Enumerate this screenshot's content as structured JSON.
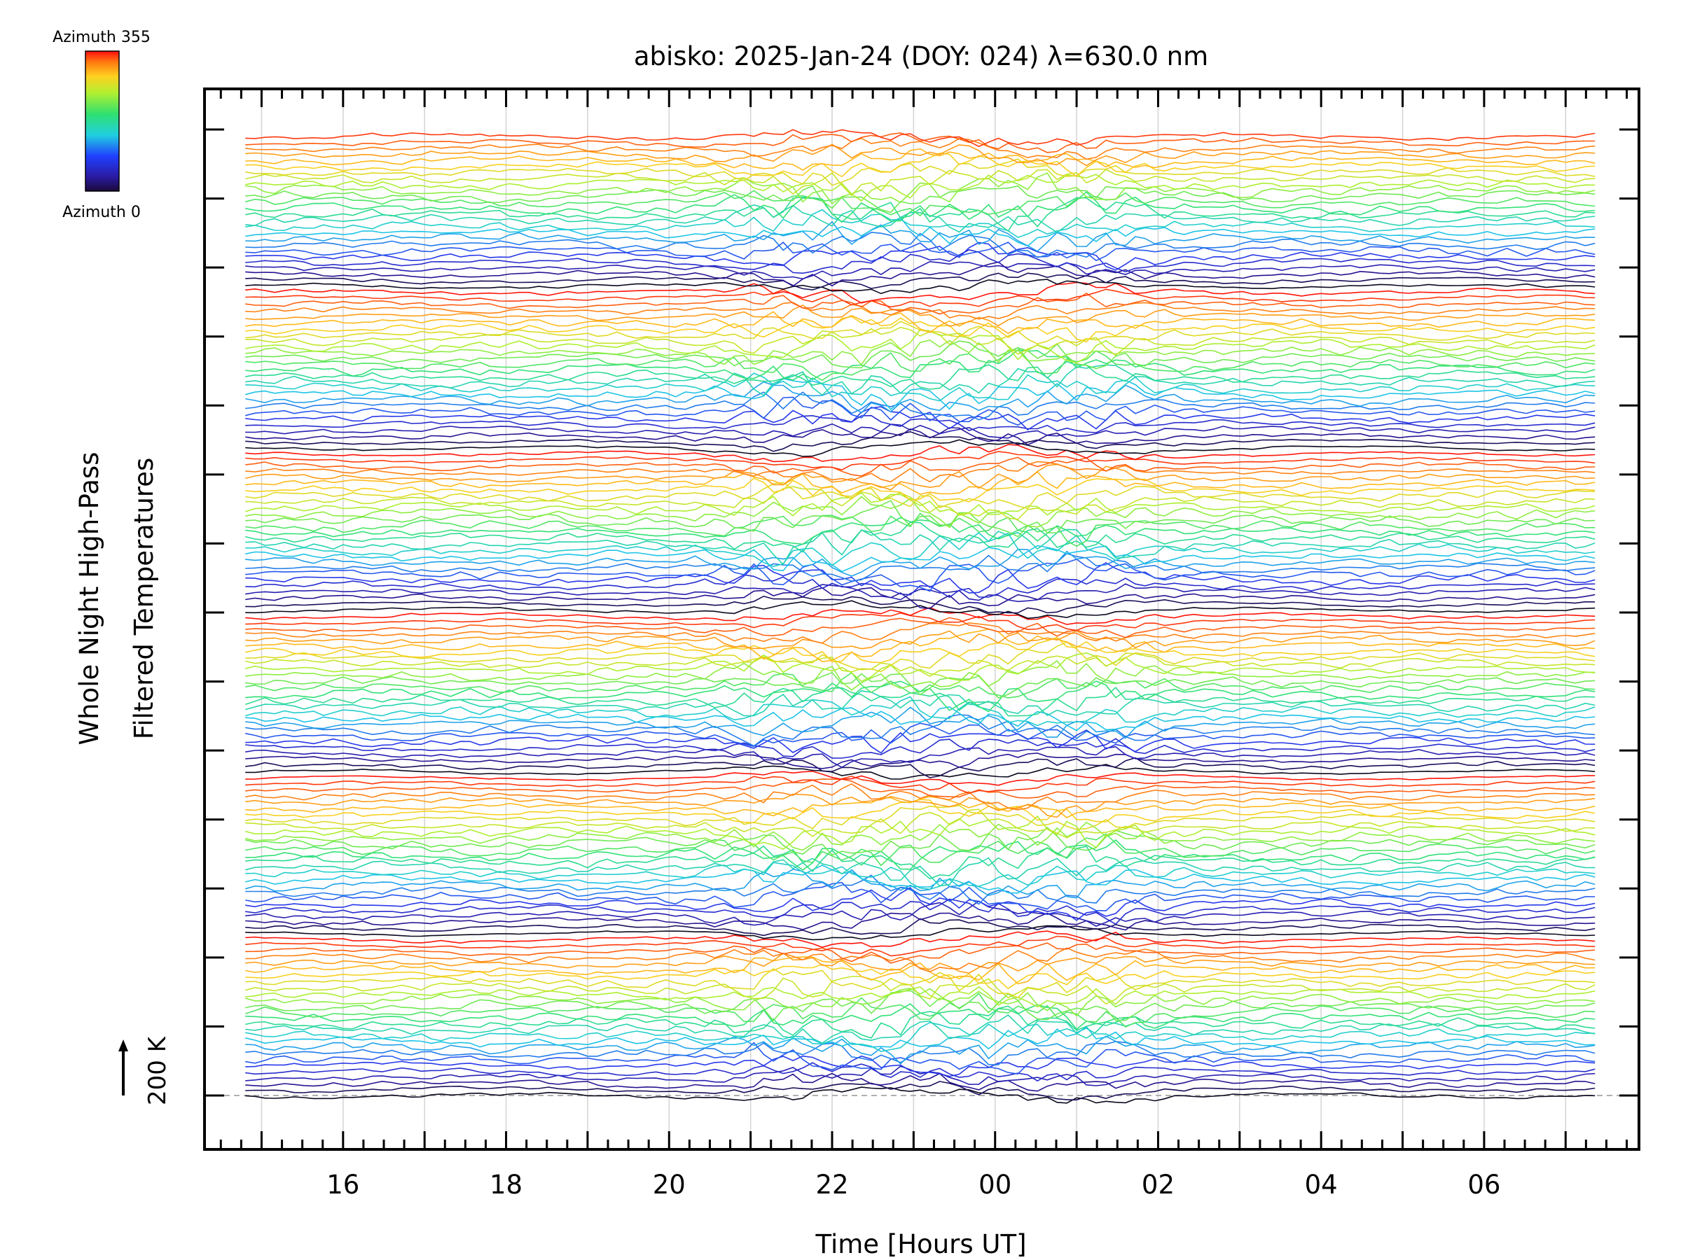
{
  "chart_data": {
    "type": "line",
    "title": "abisko: 2025-Jan-24 (DOY: 024) λ=630.0 nm",
    "xlabel": "Time [Hours UT]",
    "ylabel_line1": "Whole Night High-Pass",
    "ylabel_line2": "Filtered Temperatures",
    "scale_label": "200 K",
    "x_range_hours": [
      14.3,
      31.9
    ],
    "data_start_hour": 14.8,
    "data_end_hour": 31.4,
    "sample_interval_hours": 0.12,
    "x_ticks": [
      {
        "hour": 16,
        "label": "16"
      },
      {
        "hour": 18,
        "label": "18"
      },
      {
        "hour": 20,
        "label": "20"
      },
      {
        "hour": 22,
        "label": "22"
      },
      {
        "hour": 24,
        "label": "00"
      },
      {
        "hour": 26,
        "label": "02"
      },
      {
        "hour": 28,
        "label": "04"
      },
      {
        "hour": 30,
        "label": "06"
      }
    ],
    "y_ticks_count": 15,
    "series_count": 161,
    "offset_per_series": "stacked by azimuth ring",
    "colorbar": {
      "top_label": "Azimuth 355",
      "bottom_label": "Azimuth 0",
      "min_azimuth": 0,
      "max_azimuth": 355,
      "colormap": "rainbow (black-blue-cyan-green-yellow-orange-red)"
    },
    "disturbance_centers_hours": [
      21.6,
      22.1,
      22.9,
      24.3,
      25.0
    ],
    "colors": {
      "axes": "#000000",
      "grid": "#c8c8c8",
      "baseline_dashed": "#b0b0b0"
    }
  }
}
